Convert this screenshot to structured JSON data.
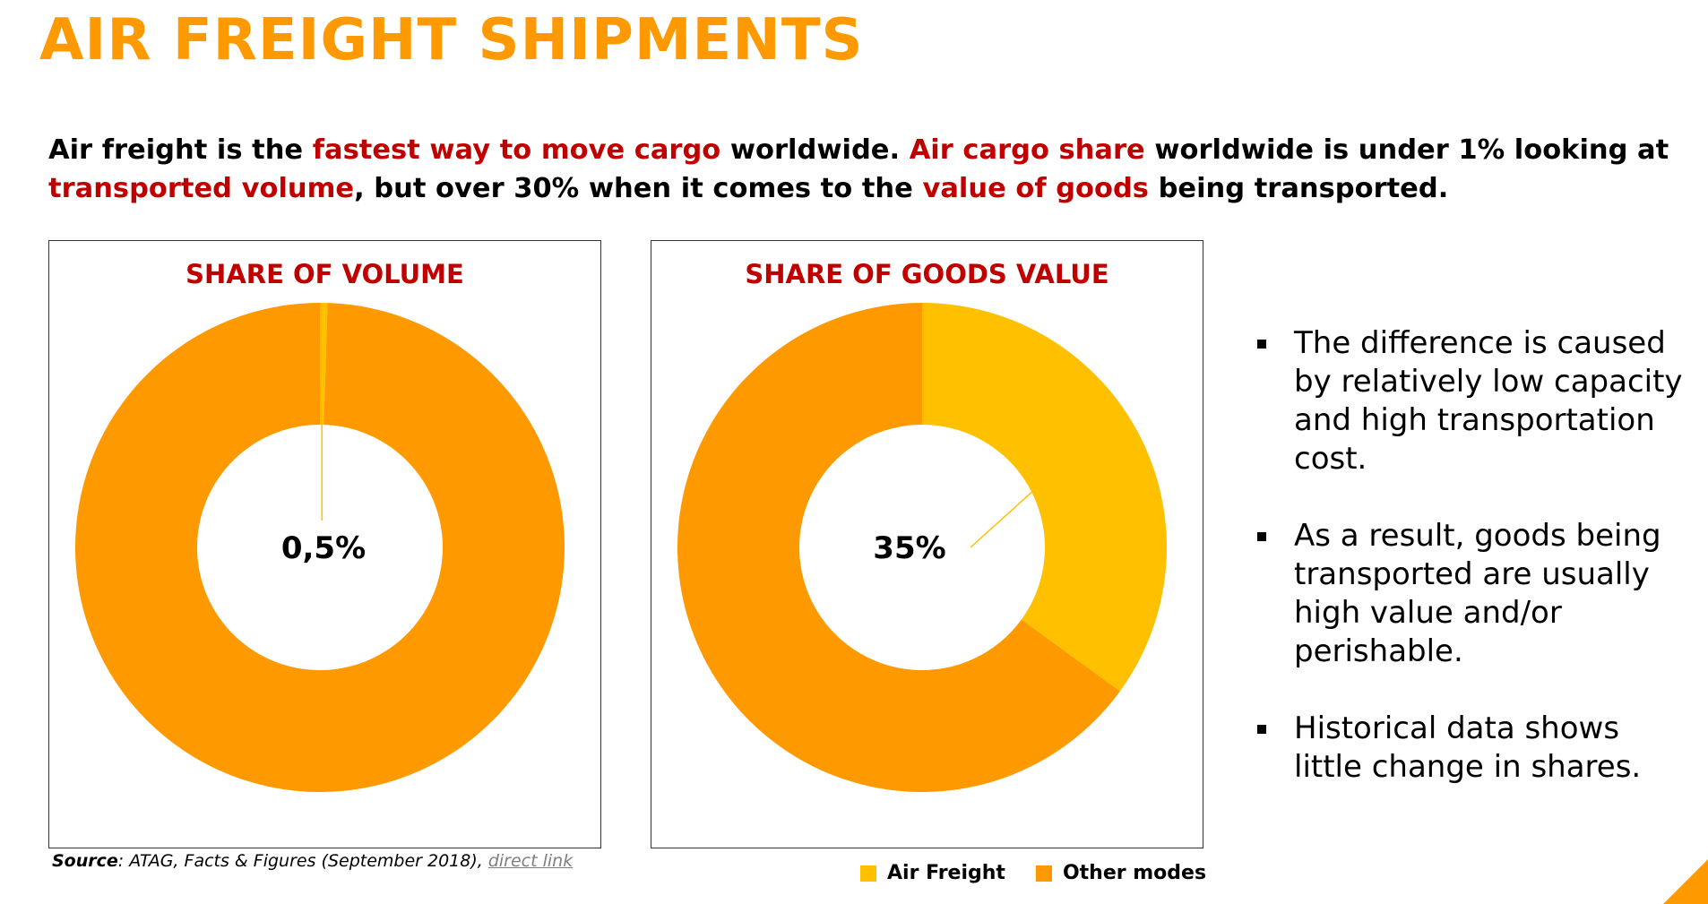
{
  "header": {
    "title": "AIR FREIGHT SHIPMENTS"
  },
  "subtitle": {
    "parts": [
      {
        "text": "Air freight is the ",
        "highlight": false
      },
      {
        "text": "fastest way to move cargo",
        "highlight": true
      },
      {
        "text": " worldwide. ",
        "highlight": false
      },
      {
        "text": "Air cargo share",
        "highlight": true
      },
      {
        "text": " worldwide is under 1% looking at ",
        "highlight": false
      },
      {
        "text": "transported volume",
        "highlight": true
      },
      {
        "text": ", but over 30% when it comes to the ",
        "highlight": false
      },
      {
        "text": "value of goods",
        "highlight": true
      },
      {
        "text": " being transported.",
        "highlight": false
      }
    ]
  },
  "colors": {
    "title": "#ff9900",
    "highlight": "#c00000",
    "air_freight": "#ffc000",
    "other_modes": "#ff9900"
  },
  "chart_data": [
    {
      "type": "pie",
      "variant": "donut",
      "title": "SHARE OF VOLUME",
      "center_label": "0,5%",
      "categories": [
        "Air Freight",
        "Other modes"
      ],
      "values": [
        0.5,
        99.5
      ]
    },
    {
      "type": "pie",
      "variant": "donut",
      "title": "SHARE OF GOODS VALUE",
      "center_label": "35%",
      "categories": [
        "Air Freight",
        "Other modes"
      ],
      "values": [
        35,
        65
      ]
    }
  ],
  "legend": {
    "placement": "bottom",
    "items": [
      {
        "label": "Air Freight",
        "color": "#ffc000"
      },
      {
        "label": "Other modes",
        "color": "#ff9900"
      }
    ]
  },
  "bullets": [
    "The difference is caused by relatively low capacity and high transportation cost.",
    "As a result, goods being transported are usually high value and/or perishable.",
    "Historical data shows little change in shares."
  ],
  "source": {
    "label": "Source",
    "text": ": ATAG, Facts & Figures (September 2018), ",
    "link_text": "direct link"
  }
}
